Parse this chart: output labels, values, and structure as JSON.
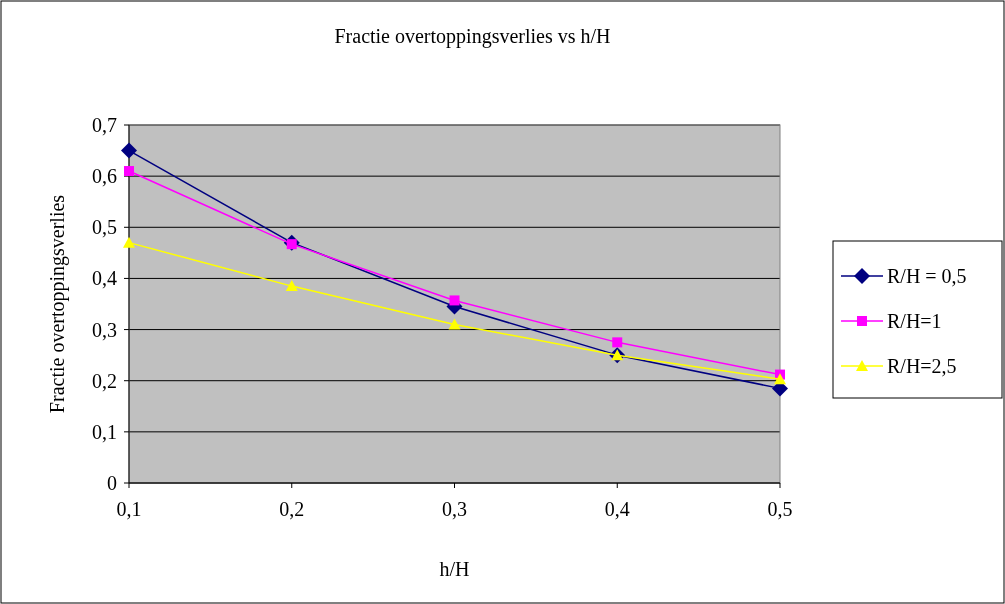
{
  "chart_data": {
    "type": "line",
    "title": "Fractie overtoppingsverlies vs h/H",
    "xlabel": "h/H",
    "ylabel": "Fractie overtoppingsverlies",
    "x": [
      0.1,
      0.2,
      0.3,
      0.4,
      0.5
    ],
    "series": [
      {
        "name": "R/H = 0,5",
        "color": "#000080",
        "marker": "diamond",
        "values": [
          0.65,
          0.47,
          0.345,
          0.25,
          0.185
        ]
      },
      {
        "name": "R/H=1",
        "color": "#ff00ff",
        "marker": "square",
        "values": [
          0.61,
          0.467,
          0.357,
          0.275,
          0.212
        ]
      },
      {
        "name": "R/H=2,5",
        "color": "#ffff00",
        "marker": "triangle",
        "values": [
          0.47,
          0.385,
          0.31,
          0.25,
          0.203
        ]
      }
    ],
    "xlim": [
      0.1,
      0.5
    ],
    "xticks": [
      {
        "value": 0.1,
        "label": "0,1"
      },
      {
        "value": 0.2,
        "label": "0,2"
      },
      {
        "value": 0.3,
        "label": "0,3"
      },
      {
        "value": 0.4,
        "label": "0,4"
      },
      {
        "value": 0.5,
        "label": "0,5"
      }
    ],
    "ylim": [
      0,
      0.7
    ],
    "yticks": [
      0,
      {
        "value": 0.1,
        "label": "0,1"
      },
      {
        "value": 0.2,
        "label": "0,2"
      },
      {
        "value": 0.3,
        "label": "0,3"
      },
      {
        "value": 0.4,
        "label": "0,4"
      },
      {
        "value": 0.5,
        "label": "0,5"
      },
      {
        "value": 0.6,
        "label": "0,6"
      },
      {
        "value": 0.7,
        "label": "0,7"
      }
    ],
    "grid": "y",
    "legend": "right",
    "line_style": "solid"
  }
}
